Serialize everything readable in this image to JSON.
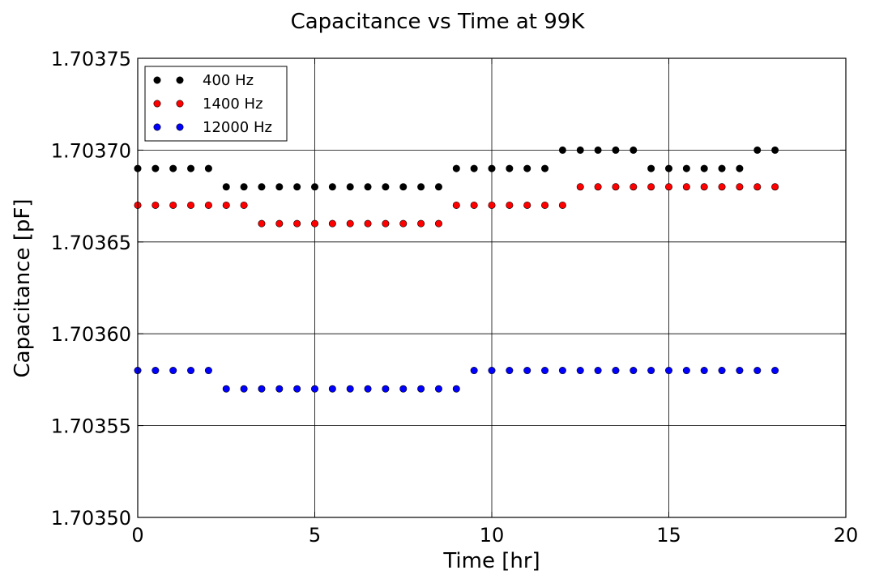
{
  "chart_data": {
    "type": "scatter",
    "title": "Capacitance vs Time at 99K",
    "xlabel": "Time [hr]",
    "ylabel": "Capacitance [pF]",
    "xlim": [
      0,
      20
    ],
    "ylim": [
      1.7035,
      1.70375
    ],
    "xticks": [
      0,
      5,
      10,
      15,
      20
    ],
    "xtick_labels": [
      "0",
      "5",
      "10",
      "15",
      "20"
    ],
    "yticks": [
      1.7035,
      1.70355,
      1.7036,
      1.70365,
      1.7037,
      1.70375
    ],
    "ytick_labels": [
      "1.70350",
      "1.70355",
      "1.70360",
      "1.70365",
      "1.70370",
      "1.70375"
    ],
    "grid": true,
    "legend_position": "top-left",
    "series": [
      {
        "name": "400 Hz",
        "color": "#000000",
        "x": [
          0.0,
          0.5,
          1.0,
          1.5,
          2.0,
          2.5,
          3.0,
          3.5,
          4.0,
          4.5,
          5.0,
          5.5,
          6.0,
          6.5,
          7.0,
          7.5,
          8.0,
          8.5,
          9.0,
          9.5,
          10.0,
          10.5,
          11.0,
          11.5,
          12.0,
          12.5,
          13.0,
          13.5,
          14.0,
          14.5,
          15.0,
          15.5,
          16.0,
          16.5,
          17.0,
          17.5,
          18.0
        ],
        "values": [
          1.70369,
          1.70369,
          1.70369,
          1.70369,
          1.70369,
          1.70368,
          1.70368,
          1.70368,
          1.70368,
          1.70368,
          1.70368,
          1.70368,
          1.70368,
          1.70368,
          1.70368,
          1.70368,
          1.70368,
          1.70368,
          1.70369,
          1.70369,
          1.70369,
          1.70369,
          1.70369,
          1.70369,
          1.7037,
          1.7037,
          1.7037,
          1.7037,
          1.7037,
          1.70369,
          1.70369,
          1.70369,
          1.70369,
          1.70369,
          1.70369,
          1.7037,
          1.7037
        ]
      },
      {
        "name": "1400 Hz",
        "color": "#ff0000",
        "x": [
          0.0,
          0.5,
          1.0,
          1.5,
          2.0,
          2.5,
          3.0,
          3.5,
          4.0,
          4.5,
          5.0,
          5.5,
          6.0,
          6.5,
          7.0,
          7.5,
          8.0,
          8.5,
          9.0,
          9.5,
          10.0,
          10.5,
          11.0,
          11.5,
          12.0,
          12.5,
          13.0,
          13.5,
          14.0,
          14.5,
          15.0,
          15.5,
          16.0,
          16.5,
          17.0,
          17.5,
          18.0
        ],
        "values": [
          1.70367,
          1.70367,
          1.70367,
          1.70367,
          1.70367,
          1.70367,
          1.70367,
          1.70366,
          1.70366,
          1.70366,
          1.70366,
          1.70366,
          1.70366,
          1.70366,
          1.70366,
          1.70366,
          1.70366,
          1.70366,
          1.70367,
          1.70367,
          1.70367,
          1.70367,
          1.70367,
          1.70367,
          1.70367,
          1.70368,
          1.70368,
          1.70368,
          1.70368,
          1.70368,
          1.70368,
          1.70368,
          1.70368,
          1.70368,
          1.70368,
          1.70368,
          1.70368
        ]
      },
      {
        "name": "12000 Hz",
        "color": "#0000ff",
        "x": [
          0.0,
          0.5,
          1.0,
          1.5,
          2.0,
          2.5,
          3.0,
          3.5,
          4.0,
          4.5,
          5.0,
          5.5,
          6.0,
          6.5,
          7.0,
          7.5,
          8.0,
          8.5,
          9.0,
          9.5,
          10.0,
          10.5,
          11.0,
          11.5,
          12.0,
          12.5,
          13.0,
          13.5,
          14.0,
          14.5,
          15.0,
          15.5,
          16.0,
          16.5,
          17.0,
          17.5,
          18.0
        ],
        "values": [
          1.70358,
          1.70358,
          1.70358,
          1.70358,
          1.70358,
          1.70357,
          1.70357,
          1.70357,
          1.70357,
          1.70357,
          1.70357,
          1.70357,
          1.70357,
          1.70357,
          1.70357,
          1.70357,
          1.70357,
          1.70357,
          1.70357,
          1.70358,
          1.70358,
          1.70358,
          1.70358,
          1.70358,
          1.70358,
          1.70358,
          1.70358,
          1.70358,
          1.70358,
          1.70358,
          1.70358,
          1.70358,
          1.70358,
          1.70358,
          1.70358,
          1.70358,
          1.70358
        ]
      }
    ]
  }
}
